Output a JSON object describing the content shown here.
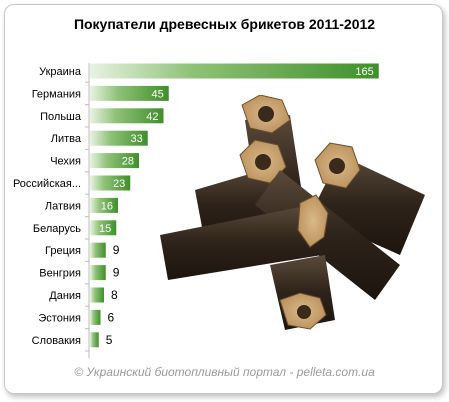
{
  "chart_data": {
    "type": "bar",
    "orientation": "horizontal",
    "title": "Покупатели древесных брикетов 2011-2012",
    "categories": [
      "Украина",
      "Германия",
      "Польша",
      "Литва",
      "Чехия",
      "Российская...",
      "Латвия",
      "Беларусь",
      "Греция",
      "Венгрия",
      "Дания",
      "Эстония",
      "Словакия"
    ],
    "values": [
      165,
      45,
      42,
      33,
      28,
      23,
      16,
      15,
      9,
      9,
      8,
      6,
      5
    ],
    "xlim": [
      0,
      175
    ],
    "grid": false,
    "legend": "none",
    "bar_color": "#3f8f2a"
  },
  "footer": "© Украинский  биотопливный  портал  - pelleta.com.ua",
  "image": {
    "icon": "wood-briquettes-image"
  }
}
